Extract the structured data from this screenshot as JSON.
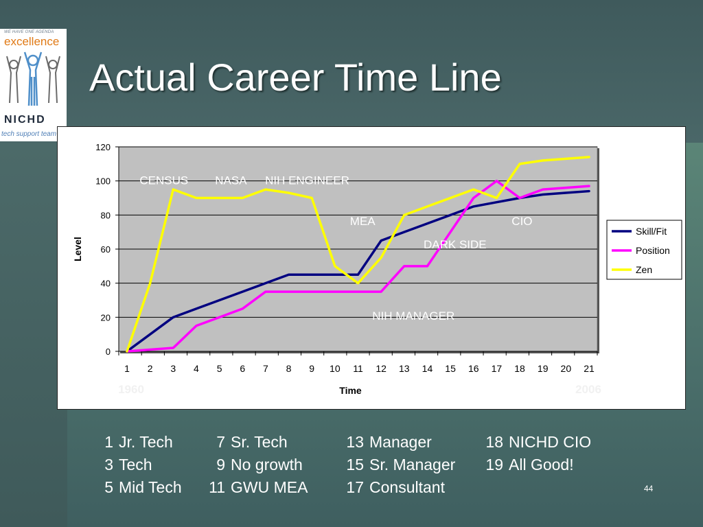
{
  "slide": {
    "title": "Actual Career Time Line",
    "page_number": "44"
  },
  "logo": {
    "tagline": "WE HAVE ONE AGENDA",
    "word": "excellence",
    "name": "NICHD",
    "subtext": "tech support team"
  },
  "colors": {
    "skill_fit": "#000080",
    "position": "#ff00ff",
    "zen": "#ffff00",
    "plot_bg": "#c0c0c0",
    "annotation": "#ffffff"
  },
  "chart_data": {
    "type": "line",
    "x": [
      1,
      2,
      3,
      4,
      5,
      6,
      7,
      8,
      9,
      10,
      11,
      12,
      13,
      14,
      15,
      16,
      17,
      18,
      19,
      20,
      21
    ],
    "xlabel": "Time",
    "ylabel": "Level",
    "ylim": [
      0,
      120
    ],
    "yticks": [
      0,
      20,
      40,
      60,
      80,
      100,
      120
    ],
    "grid": true,
    "legend": "right",
    "series": [
      {
        "name": "Skill/Fit",
        "color": "#000080",
        "values": [
          0,
          10,
          20,
          25,
          30,
          35,
          40,
          45,
          45,
          45,
          45,
          65,
          70,
          75,
          80,
          85,
          87.5,
          90,
          92,
          93,
          94
        ]
      },
      {
        "name": "Position",
        "color": "#ff00ff",
        "values": [
          0,
          1,
          2,
          15,
          20,
          25,
          35,
          35,
          35,
          35,
          35,
          35,
          50,
          50,
          70,
          90,
          100,
          90,
          95,
          96,
          97
        ]
      },
      {
        "name": "Zen",
        "color": "#ffff00",
        "values": [
          0,
          40,
          95,
          90,
          90,
          90,
          95,
          93,
          90,
          50,
          40,
          55,
          80,
          85,
          90,
          95,
          90,
          110,
          112,
          113,
          114
        ]
      }
    ],
    "annotations": [
      {
        "text": "CENSUS",
        "x": 2.6,
        "y": 98
      },
      {
        "text": "NASA",
        "x": 5.5,
        "y": 98
      },
      {
        "text": "NIH ENGINEER",
        "x": 8.8,
        "y": 98
      },
      {
        "text": "MEA",
        "x": 11.2,
        "y": 74
      },
      {
        "text": "CIO",
        "x": 18.1,
        "y": 74
      },
      {
        "text": "DARK SIDE",
        "x": 15.2,
        "y": 60.5
      },
      {
        "text": "NIH MANAGER",
        "x": 13.4,
        "y": 18.5
      }
    ],
    "range_labels": {
      "start": "1960",
      "end": "2006"
    }
  },
  "caption": {
    "columns": [
      [
        {
          "n": "1",
          "t": "Jr. Tech"
        },
        {
          "n": "3",
          "t": "Tech"
        },
        {
          "n": "5",
          "t": "Mid Tech"
        }
      ],
      [
        {
          "n": "7",
          "t": "Sr. Tech"
        },
        {
          "n": "9",
          "t": "No growth"
        },
        {
          "n": "11",
          "t": "GWU  MEA"
        }
      ],
      [
        {
          "n": "13",
          "t": "Manager"
        },
        {
          "n": "15",
          "t": "Sr. Manager"
        },
        {
          "n": "17",
          "t": "Consultant"
        }
      ],
      [
        {
          "n": "18",
          "t": "NICHD CIO"
        },
        {
          "n": "19",
          "t": "All Good!"
        }
      ]
    ]
  }
}
